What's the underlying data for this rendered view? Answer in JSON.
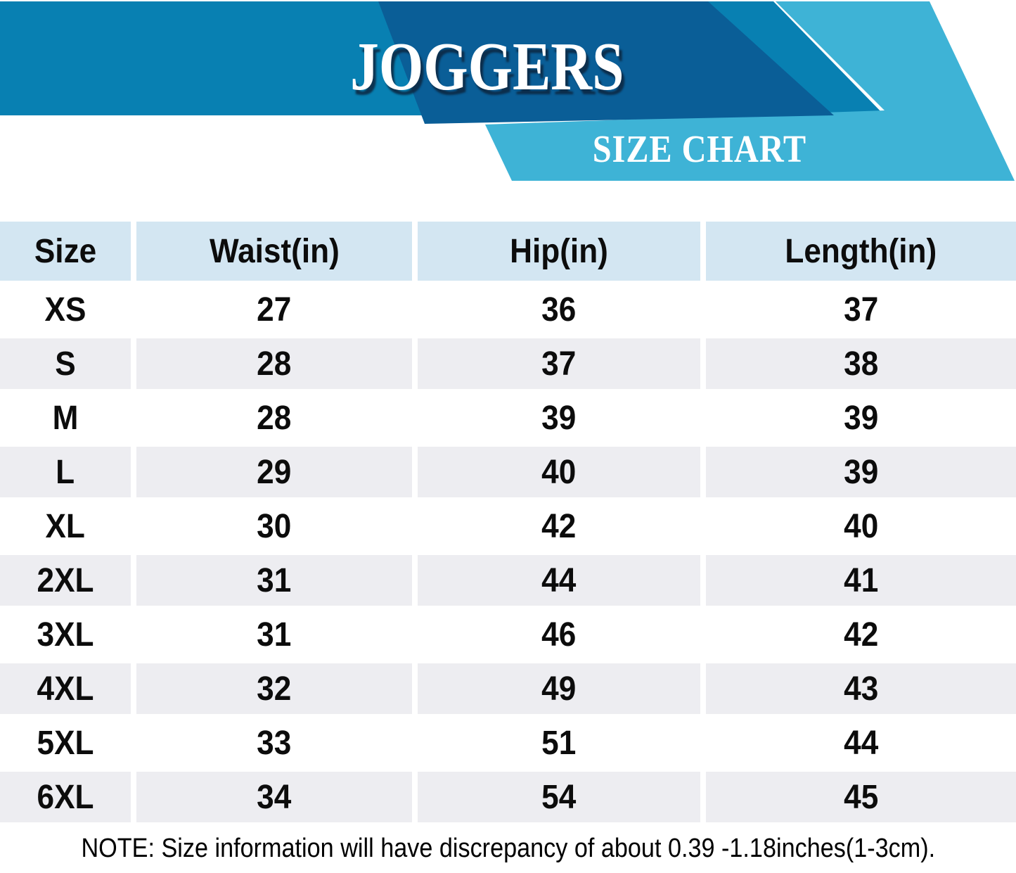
{
  "header": {
    "title": "JOGGERS",
    "subtitle": "SIZE CHART",
    "colors": {
      "band_medium": "#0880b2",
      "band_dark": "#0a5e97",
      "band_light": "#3eb3d6"
    }
  },
  "table": {
    "columns": [
      "Size",
      "Waist(in)",
      "Hip(in)",
      "Length(in)"
    ],
    "rows": [
      [
        "XS",
        "27",
        "36",
        "37"
      ],
      [
        "S",
        "28",
        "37",
        "38"
      ],
      [
        "M",
        "28",
        "39",
        "39"
      ],
      [
        "L",
        "29",
        "40",
        "39"
      ],
      [
        "XL",
        "30",
        "42",
        "40"
      ],
      [
        "2XL",
        "31",
        "44",
        "41"
      ],
      [
        "3XL",
        "31",
        "46",
        "42"
      ],
      [
        "4XL",
        "32",
        "49",
        "43"
      ],
      [
        "5XL",
        "33",
        "51",
        "44"
      ],
      [
        "6XL",
        "34",
        "54",
        "45"
      ]
    ],
    "colors": {
      "header_bg": "#d3e6f2",
      "stripe_bg": "#ededf1",
      "row_bg": "#ffffff",
      "text": "#0c0c0c"
    }
  },
  "note": "NOTE: Size information will have discrepancy of about 0.39 -1.18inches(1-3cm)."
}
